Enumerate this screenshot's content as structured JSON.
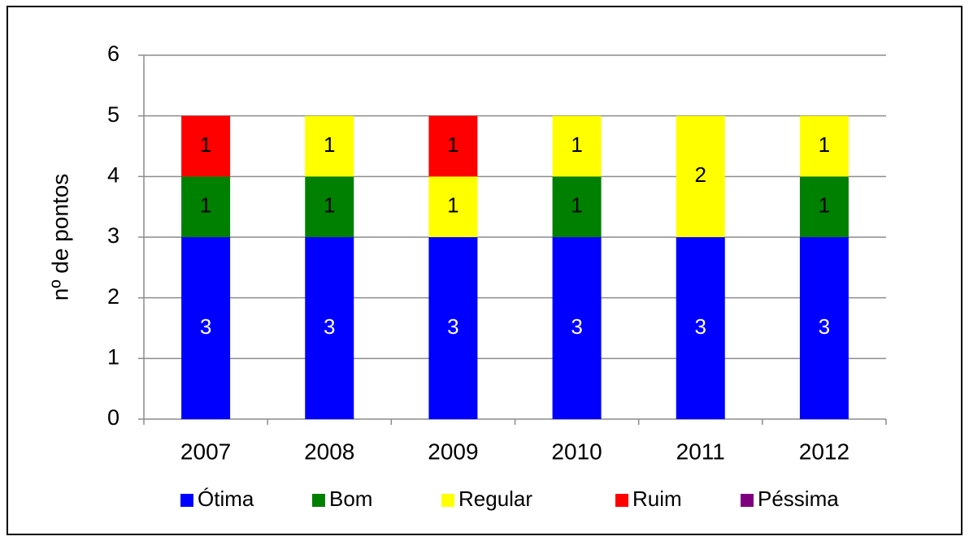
{
  "chart_data": {
    "type": "bar",
    "stacked": true,
    "title": "",
    "xlabel": "",
    "ylabel": "nº de pontos",
    "ylim": [
      0,
      6
    ],
    "yticks": [
      0,
      1,
      2,
      3,
      4,
      5,
      6
    ],
    "grid": true,
    "legend_position": "bottom",
    "categories": [
      "2007",
      "2008",
      "2009",
      "2010",
      "2011",
      "2012"
    ],
    "series": [
      {
        "name": "Ótima",
        "color": "#0000FF",
        "label_color": "#FFFFFF",
        "values": [
          3,
          3,
          3,
          3,
          3,
          3
        ]
      },
      {
        "name": "Bom",
        "color": "#008000",
        "label_color": "#000000",
        "values": [
          1,
          1,
          0,
          1,
          0,
          1
        ]
      },
      {
        "name": "Regular",
        "color": "#FFFF00",
        "label_color": "#000000",
        "values": [
          0,
          1,
          1,
          1,
          2,
          1
        ]
      },
      {
        "name": "Ruim",
        "color": "#FF0000",
        "label_color": "#000000",
        "values": [
          1,
          0,
          1,
          0,
          0,
          0
        ]
      },
      {
        "name": "Péssima",
        "color": "#7F007F",
        "label_color": "#FFFFFF",
        "values": [
          0,
          0,
          0,
          0,
          0,
          0
        ]
      }
    ]
  }
}
